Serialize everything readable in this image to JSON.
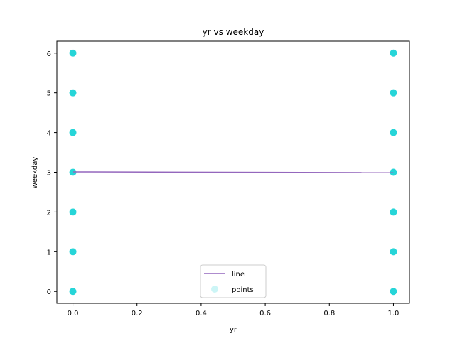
{
  "chart_data": {
    "type": "scatter",
    "title": "yr vs weekday",
    "xlabel": "yr",
    "ylabel": "weekday",
    "xlim": [
      -0.05,
      1.05
    ],
    "ylim": [
      -0.3,
      6.3
    ],
    "xticks": [
      0.0,
      0.2,
      0.4,
      0.6,
      0.8,
      1.0
    ],
    "xtick_labels": [
      "0.0",
      "0.2",
      "0.4",
      "0.6",
      "0.8",
      "1.0"
    ],
    "yticks": [
      0,
      1,
      2,
      3,
      4,
      5,
      6
    ],
    "ytick_labels": [
      "0",
      "1",
      "2",
      "3",
      "4",
      "5",
      "6"
    ],
    "grid": false,
    "legend_position": "lower-center",
    "series": [
      {
        "name": "line",
        "kind": "line",
        "color": "#9467bd",
        "points": [
          [
            0,
            3.01
          ],
          [
            1,
            2.99
          ]
        ]
      },
      {
        "name": "points",
        "kind": "scatter",
        "color": "#00ced1",
        "points": [
          [
            0,
            0
          ],
          [
            0,
            1
          ],
          [
            0,
            2
          ],
          [
            0,
            3
          ],
          [
            0,
            4
          ],
          [
            0,
            5
          ],
          [
            0,
            6
          ],
          [
            1,
            0
          ],
          [
            1,
            1
          ],
          [
            1,
            2
          ],
          [
            1,
            3
          ],
          [
            1,
            4
          ],
          [
            1,
            5
          ],
          [
            1,
            6
          ]
        ]
      }
    ]
  }
}
